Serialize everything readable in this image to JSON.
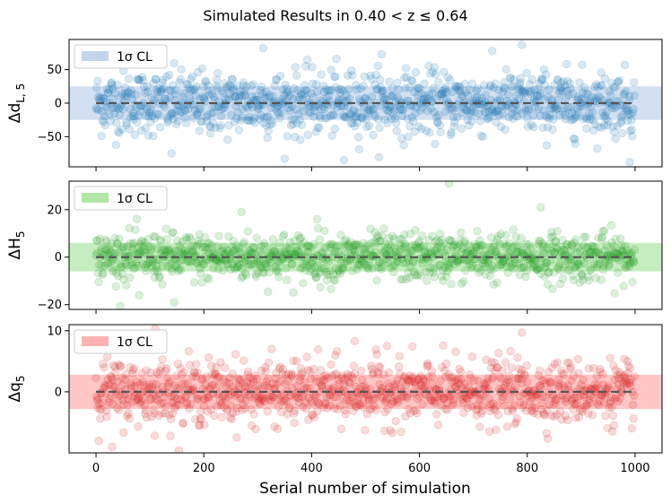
{
  "chart_data": {
    "type": "scatter",
    "title": "Simulated Results in 0.40 < z ≤ 0.64",
    "xlabel": "Serial number of simulation",
    "xlim": [
      -50,
      1050
    ],
    "xticks": [
      0,
      200,
      400,
      600,
      800,
      1000
    ],
    "xtick_labels": [
      "0",
      "200",
      "400",
      "600",
      "800",
      "1000"
    ],
    "n_points_per_panel": 1000,
    "panels": [
      {
        "key": "dL",
        "ylabel_main": "Δd",
        "ylabel_sub": "L, 5",
        "legend": "1σ CL",
        "color": "#1f77b4",
        "band_color": "#aec7e8",
        "ylim": [
          -95,
          95
        ],
        "yticks": [
          -50,
          0,
          50
        ],
        "ytick_labels": [
          "−50",
          "0",
          "50"
        ],
        "sigma": 25,
        "point_std": 28,
        "outliers": [
          [
            310,
            82
          ],
          [
            790,
            87
          ],
          [
            460,
            -85
          ],
          [
            990,
            -88
          ],
          [
            530,
            73
          ],
          [
            140,
            -75
          ]
        ]
      },
      {
        "key": "H",
        "ylabel_main": "ΔH",
        "ylabel_sub": "5",
        "legend": "1σ CL",
        "color": "#2ca02c",
        "band_color": "#98df8a",
        "ylim": [
          -22,
          32
        ],
        "yticks": [
          -20,
          0,
          20
        ],
        "ytick_labels": [
          "−20",
          "0",
          "20"
        ],
        "sigma": 6,
        "point_std": 6,
        "outliers": [
          [
            655,
            31
          ],
          [
            825,
            21
          ],
          [
            145,
            -19
          ],
          [
            410,
            16
          ],
          [
            270,
            19
          ],
          [
            80,
            -16
          ]
        ]
      },
      {
        "key": "q",
        "ylabel_main": "Δq",
        "ylabel_sub": "5",
        "legend": "1σ CL",
        "color": "#d62728",
        "band_color": "#ff9896",
        "ylim": [
          -10,
          11
        ],
        "yticks": [
          0,
          10
        ],
        "ytick_labels": [
          "0",
          "10"
        ],
        "sigma": 2.8,
        "point_std": 3,
        "outliers": [
          [
            110,
            10.3
          ],
          [
            790,
            9.7
          ],
          [
            30,
            -9
          ],
          [
            540,
            7.5
          ],
          [
            480,
            8.3
          ],
          [
            730,
            -6.5
          ]
        ]
      }
    ]
  }
}
